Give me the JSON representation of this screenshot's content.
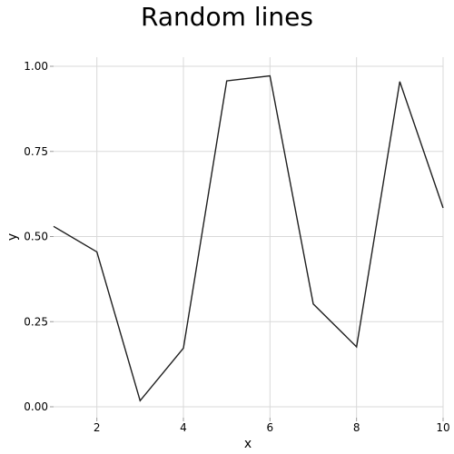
{
  "chart_data": {
    "type": "line",
    "title": "Random lines",
    "xlabel": "x",
    "ylabel": "y",
    "xlim": [
      1,
      10
    ],
    "ylim": [
      0,
      1
    ],
    "xticks": [
      2,
      4,
      6,
      8,
      10
    ],
    "xtick_labels": [
      "2",
      "4",
      "6",
      "8",
      "10"
    ],
    "yticks": [
      0,
      0.25,
      0.5,
      0.75,
      1.0
    ],
    "ytick_labels": [
      "0.00",
      "0.25",
      "0.50",
      "0.75",
      "1.00"
    ],
    "grid": true,
    "legend": false,
    "series": [
      {
        "color": "#1f1f1f",
        "x": [
          1,
          2,
          3,
          4,
          5,
          6,
          7,
          8,
          9,
          10
        ],
        "y": [
          0.53,
          0.455,
          0.018,
          0.172,
          0.957,
          0.972,
          0.302,
          0.176,
          0.955,
          0.584
        ]
      }
    ]
  }
}
